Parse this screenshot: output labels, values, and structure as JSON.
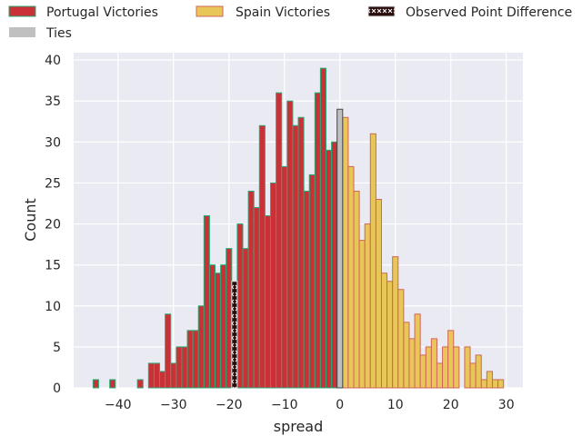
{
  "chart_data": {
    "type": "bar",
    "xlabel": "spread",
    "ylabel": "Count",
    "xlim": [
      -48,
      33
    ],
    "ylim": [
      0,
      40.9
    ],
    "xticks": [
      -40,
      -30,
      -20,
      -10,
      0,
      10,
      20,
      30
    ],
    "xtick_labels": [
      "−40",
      "−30",
      "−20",
      "−10",
      "0",
      "10",
      "20",
      "30"
    ],
    "yticks": [
      0,
      5,
      10,
      15,
      20,
      25,
      30,
      35,
      40
    ],
    "ytick_labels": [
      "0",
      "5",
      "10",
      "15",
      "20",
      "25",
      "30",
      "35",
      "40"
    ],
    "grid": true,
    "legend_placement": "top, outside plot",
    "legend": [
      "Portugal Victories",
      "Spain Victories",
      "Observed Point Difference",
      "Ties"
    ],
    "series": [
      {
        "name": "Portugal Victories",
        "color": "#c93136",
        "edge": "#2aa876",
        "x": [
          -44,
          -41,
          -36,
          -34,
          -33,
          -32,
          -31,
          -30,
          -29,
          -28,
          -27,
          -26,
          -25,
          -24,
          -23,
          -22,
          -21,
          -20,
          -18,
          -17,
          -16,
          -15,
          -14,
          -13,
          -12,
          -11,
          -10,
          -9,
          -8,
          -7,
          -6,
          -5,
          -4,
          -3,
          -2,
          -1
        ],
        "values": [
          1,
          1,
          1,
          3,
          3,
          2,
          9,
          3,
          5,
          5,
          7,
          7,
          10,
          21,
          15,
          14,
          15,
          17,
          20,
          17,
          24,
          22,
          32,
          21,
          25,
          36,
          27,
          35,
          32,
          33,
          24,
          26,
          36,
          39,
          29,
          30
        ]
      },
      {
        "name": "Spain Victories",
        "color": "#e8c658",
        "edge": "#d0665a",
        "x": [
          1,
          2,
          3,
          4,
          5,
          6,
          7,
          8,
          9,
          10,
          11,
          12,
          13,
          14,
          15,
          16,
          17,
          18,
          19,
          20,
          21,
          23,
          24,
          25,
          26,
          27,
          28,
          29
        ],
        "values": [
          33,
          27,
          24,
          18,
          20,
          31,
          23,
          14,
          13,
          16,
          12,
          8,
          6,
          9,
          4,
          5,
          6,
          3,
          5,
          7,
          5,
          5,
          3,
          4,
          1,
          2,
          1,
          1
        ]
      },
      {
        "name": "Ties",
        "color": "#c0c0c0",
        "edge": "#444444",
        "x": [
          0
        ],
        "values": [
          34
        ]
      },
      {
        "name": "Observed Point Difference",
        "color": "#2a0d0d",
        "edge": "#dddddd",
        "x": [
          -19
        ],
        "values": [
          13
        ]
      }
    ]
  }
}
